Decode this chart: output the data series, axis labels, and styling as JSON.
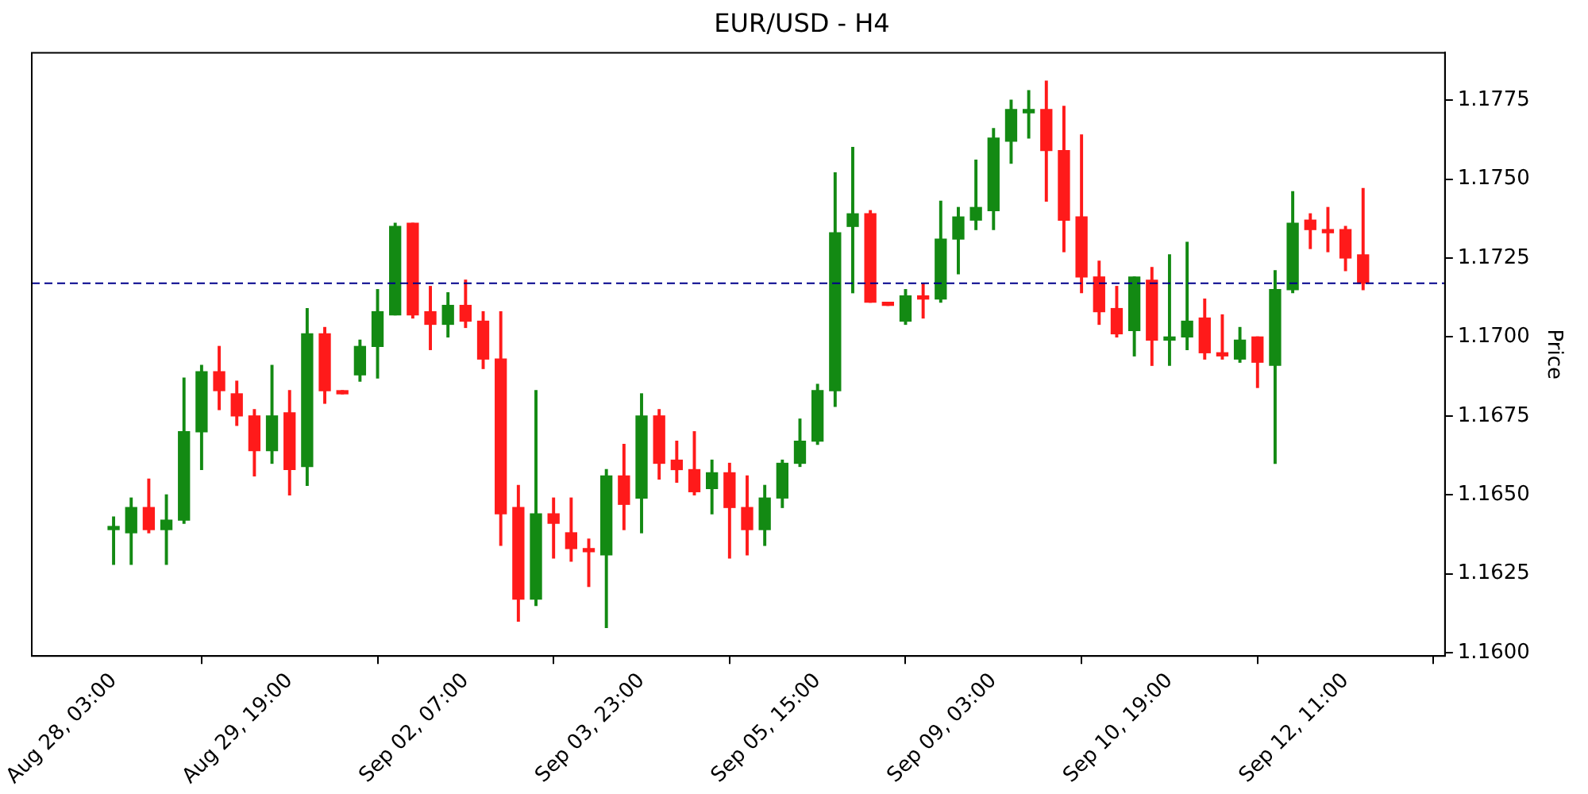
{
  "chart_data": {
    "type": "candlestick",
    "title": "EUR/USD - H4",
    "ylabel": "Price",
    "categories": [
      "Aug 28, 03:00",
      null,
      null,
      null,
      null,
      null,
      null,
      null,
      null,
      null,
      "Aug 29, 19:00",
      null,
      null,
      null,
      null,
      null,
      null,
      null,
      null,
      null,
      "Sep 02, 07:00",
      null,
      null,
      null,
      null,
      null,
      null,
      null,
      null,
      null,
      "Sep 03, 23:00",
      null,
      null,
      null,
      null,
      null,
      null,
      null,
      null,
      null,
      "Sep 05, 15:00",
      null,
      null,
      null,
      null,
      null,
      null,
      null,
      null,
      null,
      "Sep 09, 03:00",
      null,
      null,
      null,
      null,
      null,
      null,
      null,
      null,
      null,
      "Sep 10, 19:00",
      null,
      null,
      null,
      null,
      null,
      null,
      null,
      null,
      null,
      "Sep 12, 11:00",
      null
    ],
    "ohlc": [
      [
        1.1639,
        1.1643,
        1.1628,
        1.164
      ],
      [
        1.1638,
        1.1649,
        1.1628,
        1.1646
      ],
      [
        1.1646,
        1.1655,
        1.1638,
        1.1639
      ],
      [
        1.1639,
        1.165,
        1.1628,
        1.1642
      ],
      [
        1.1642,
        1.1687,
        1.1641,
        1.167
      ],
      [
        1.167,
        1.1691,
        1.1658,
        1.1689
      ],
      [
        1.1689,
        1.1697,
        1.1677,
        1.1683
      ],
      [
        1.1682,
        1.1686,
        1.1672,
        1.1675
      ],
      [
        1.1675,
        1.1677,
        1.1656,
        1.1664
      ],
      [
        1.1664,
        1.1691,
        1.166,
        1.1675
      ],
      [
        1.1676,
        1.1683,
        1.165,
        1.1658
      ],
      [
        1.1659,
        1.1709,
        1.1653,
        1.1701
      ],
      [
        1.1701,
        1.1703,
        1.1679,
        1.1683
      ],
      [
        1.1683,
        1.1683,
        1.1682,
        1.1682
      ],
      [
        1.1688,
        1.1699,
        1.1686,
        1.1697
      ],
      [
        1.1697,
        1.1715,
        1.1687,
        1.1708
      ],
      [
        1.1707,
        1.1736,
        1.1707,
        1.1735
      ],
      [
        1.1736,
        1.1736,
        1.1706,
        1.1707
      ],
      [
        1.1708,
        1.1716,
        1.1696,
        1.1704
      ],
      [
        1.1704,
        1.1714,
        1.17,
        1.171
      ],
      [
        1.171,
        1.1718,
        1.1703,
        1.1705
      ],
      [
        1.1705,
        1.1708,
        1.169,
        1.1693
      ],
      [
        1.1693,
        1.1708,
        1.1634,
        1.1644
      ],
      [
        1.1646,
        1.1653,
        1.161,
        1.1617
      ],
      [
        1.1617,
        1.1683,
        1.1615,
        1.1644
      ],
      [
        1.1644,
        1.1649,
        1.163,
        1.1641
      ],
      [
        1.1638,
        1.1649,
        1.1629,
        1.1633
      ],
      [
        1.1633,
        1.1636,
        1.1621,
        1.1632
      ],
      [
        1.1631,
        1.1658,
        1.1608,
        1.1656
      ],
      [
        1.1656,
        1.1666,
        1.1639,
        1.1647
      ],
      [
        1.1649,
        1.1682,
        1.1638,
        1.1675
      ],
      [
        1.1675,
        1.1677,
        1.1655,
        1.166
      ],
      [
        1.1661,
        1.1667,
        1.1654,
        1.1658
      ],
      [
        1.1658,
        1.167,
        1.165,
        1.1651
      ],
      [
        1.1652,
        1.1661,
        1.1644,
        1.1657
      ],
      [
        1.1657,
        1.166,
        1.163,
        1.1646
      ],
      [
        1.1646,
        1.1656,
        1.1631,
        1.1639
      ],
      [
        1.1639,
        1.1653,
        1.1634,
        1.1649
      ],
      [
        1.1649,
        1.1661,
        1.1646,
        1.166
      ],
      [
        1.166,
        1.1674,
        1.1659,
        1.1667
      ],
      [
        1.1667,
        1.1685,
        1.1666,
        1.1683
      ],
      [
        1.1683,
        1.1752,
        1.1678,
        1.1733
      ],
      [
        1.1735,
        1.176,
        1.1714,
        1.1739
      ],
      [
        1.1739,
        1.174,
        1.1711,
        1.1711
      ],
      [
        1.1711,
        1.1711,
        1.171,
        1.171
      ],
      [
        1.1705,
        1.1715,
        1.1704,
        1.1713
      ],
      [
        1.1713,
        1.1717,
        1.1706,
        1.1712
      ],
      [
        1.1712,
        1.1743,
        1.1711,
        1.1731
      ],
      [
        1.1731,
        1.1741,
        1.172,
        1.1738
      ],
      [
        1.1737,
        1.1756,
        1.1734,
        1.1741
      ],
      [
        1.174,
        1.1766,
        1.1734,
        1.1763
      ],
      [
        1.1762,
        1.1775,
        1.1755,
        1.1772
      ],
      [
        1.1771,
        1.1778,
        1.1763,
        1.1772
      ],
      [
        1.1772,
        1.1781,
        1.1743,
        1.1759
      ],
      [
        1.1759,
        1.1773,
        1.1727,
        1.1737
      ],
      [
        1.1738,
        1.1764,
        1.1714,
        1.1719
      ],
      [
        1.1719,
        1.1724,
        1.1704,
        1.1708
      ],
      [
        1.1709,
        1.1716,
        1.17,
        1.1701
      ],
      [
        1.1702,
        1.1719,
        1.1694,
        1.1719
      ],
      [
        1.1718,
        1.1722,
        1.1691,
        1.1699
      ],
      [
        1.1699,
        1.1726,
        1.1691,
        1.17
      ],
      [
        1.17,
        1.173,
        1.1696,
        1.1705
      ],
      [
        1.1706,
        1.1712,
        1.1693,
        1.1695
      ],
      [
        1.1695,
        1.1707,
        1.1693,
        1.1694
      ],
      [
        1.1693,
        1.1703,
        1.1692,
        1.1699
      ],
      [
        1.17,
        1.17,
        1.1684,
        1.1692
      ],
      [
        1.1691,
        1.1721,
        1.166,
        1.1715
      ],
      [
        1.1715,
        1.1746,
        1.1714,
        1.1736
      ],
      [
        1.1737,
        1.1739,
        1.1728,
        1.1734
      ],
      [
        1.1734,
        1.1741,
        1.1727,
        1.1733
      ],
      [
        1.1734,
        1.1735,
        1.1721,
        1.1725
      ],
      [
        1.1726,
        1.1747,
        1.1715,
        1.1717
      ]
    ],
    "colors": [
      "#138a13",
      "#138a13",
      "#ff1a1a",
      "#138a13",
      "#138a13",
      "#138a13",
      "#ff1a1a",
      "#ff1a1a",
      "#ff1a1a",
      "#138a13",
      "#ff1a1a",
      "#138a13",
      "#ff1a1a",
      "#ff1a1a",
      "#138a13",
      "#138a13",
      "#138a13",
      "#ff1a1a",
      "#ff1a1a",
      "#138a13",
      "#ff1a1a",
      "#ff1a1a",
      "#ff1a1a",
      "#ff1a1a",
      "#138a13",
      "#ff1a1a",
      "#ff1a1a",
      "#ff1a1a",
      "#138a13",
      "#ff1a1a",
      "#138a13",
      "#ff1a1a",
      "#ff1a1a",
      "#ff1a1a",
      "#138a13",
      "#ff1a1a",
      "#ff1a1a",
      "#138a13",
      "#138a13",
      "#138a13",
      "#138a13",
      "#138a13",
      "#138a13",
      "#ff1a1a",
      "#ff1a1a",
      "#138a13",
      "#ff1a1a",
      "#138a13",
      "#138a13",
      "#138a13",
      "#138a13",
      "#138a13",
      "#138a13",
      "#ff1a1a",
      "#ff1a1a",
      "#ff1a1a",
      "#ff1a1a",
      "#ff1a1a",
      "#138a13",
      "#ff1a1a",
      "#138a13",
      "#138a13",
      "#ff1a1a",
      "#ff1a1a",
      "#138a13",
      "#ff1a1a",
      "#138a13",
      "#138a13",
      "#ff1a1a",
      "#ff1a1a",
      "#ff1a1a",
      "#ff1a1a"
    ],
    "ylim": [
      1.1599,
      1.179
    ],
    "yticks": [
      {
        "value": 1.16,
        "label": "1.1600"
      },
      {
        "value": 1.1625,
        "label": "1.1625"
      },
      {
        "value": 1.165,
        "label": "1.1650"
      },
      {
        "value": 1.1675,
        "label": "1.1675"
      },
      {
        "value": 1.17,
        "label": "1.1700"
      },
      {
        "value": 1.1725,
        "label": "1.1725"
      },
      {
        "value": 1.175,
        "label": "1.1750"
      },
      {
        "value": 1.1775,
        "label": "1.1775"
      }
    ],
    "ref_lines": [
      {
        "axis": "y",
        "value": 1.1717,
        "color": "#00008b",
        "line_style": "dashed"
      }
    ],
    "grid": false,
    "legend": false
  }
}
